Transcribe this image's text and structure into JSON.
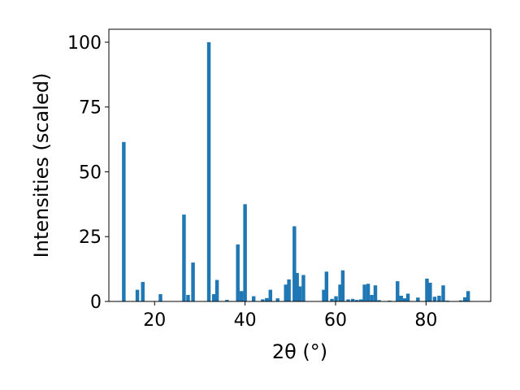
{
  "chart_data": {
    "type": "bar",
    "xlabel": "2θ (°)",
    "ylabel": "Intensities (scaled)",
    "xlim": [
      9.9,
      94.3
    ],
    "ylim": [
      0,
      105
    ],
    "xticks": [
      20,
      40,
      60,
      80
    ],
    "yticks": [
      0,
      25,
      50,
      75,
      100
    ],
    "grid": false,
    "bar_width": 0.8,
    "bar_color": "#1f77b4",
    "x": [
      13.2,
      16.2,
      17.4,
      21.3,
      26.5,
      27.4,
      28.5,
      32.0,
      33.1,
      33.8,
      36.0,
      38.4,
      39.2,
      40.0,
      41.9,
      43.9,
      44.8,
      45.6,
      47.2,
      49.0,
      49.7,
      50.9,
      51.5,
      52.1,
      52.9,
      57.4,
      58.0,
      59.2,
      60.1,
      61.0,
      61.6,
      62.8,
      63.8,
      64.7,
      65.6,
      66.4,
      67.2,
      68.0,
      68.8,
      69.6,
      71.9,
      73.7,
      74.5,
      75.3,
      76.0,
      78.2,
      80.2,
      80.9,
      81.9,
      82.9,
      83.8,
      84.7,
      87.7,
      88.6,
      89.3
    ],
    "values": [
      61.5,
      4.5,
      7.5,
      2.8,
      33.5,
      2.5,
      15.0,
      100.0,
      2.8,
      8.3,
      0.6,
      22.0,
      4.0,
      37.5,
      2.0,
      0.8,
      1.3,
      4.5,
      1.2,
      6.5,
      8.5,
      29.0,
      11.0,
      5.8,
      10.2,
      4.5,
      11.5,
      1.0,
      2.0,
      6.5,
      12.0,
      0.8,
      1.0,
      0.6,
      0.8,
      6.5,
      6.8,
      2.5,
      6.2,
      0.5,
      0.3,
      7.8,
      2.2,
      1.2,
      3.0,
      1.5,
      8.8,
      7.2,
      1.8,
      2.2,
      6.2,
      0.3,
      0.4,
      1.6,
      4.0
    ]
  }
}
